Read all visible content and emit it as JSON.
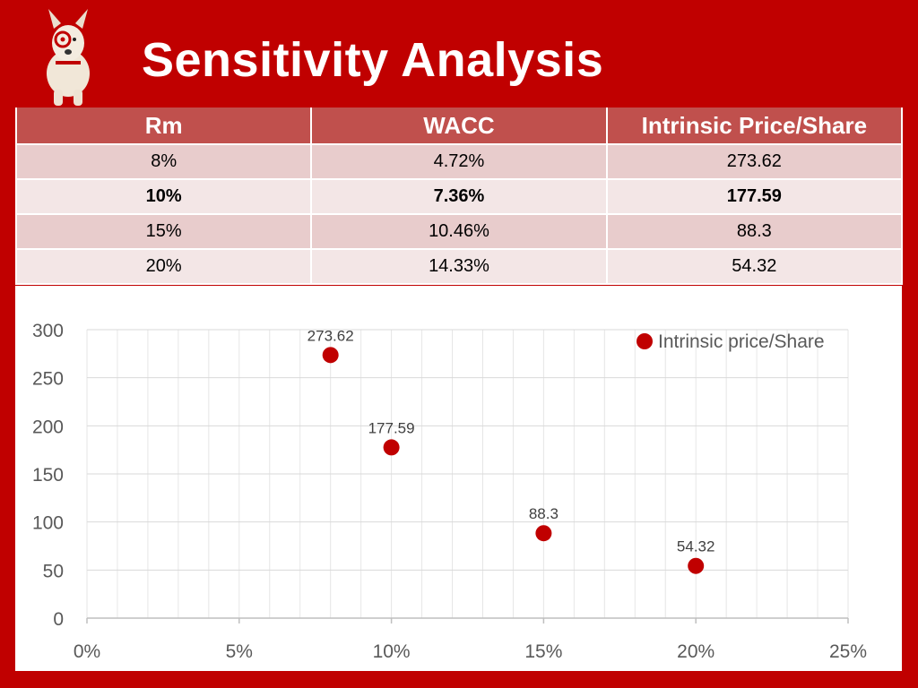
{
  "header": {
    "title": "Sensitivity Analysis"
  },
  "mascot": {
    "icon": "bull-terrier-mascot-icon"
  },
  "table": {
    "columns": [
      "Rm",
      "WACC",
      "Intrinsic Price/Share"
    ],
    "rows": [
      [
        "8%",
        "4.72%",
        "273.62"
      ],
      [
        "10%",
        "7.36%",
        "177.59"
      ],
      [
        "15%",
        "10.46%",
        "88.3"
      ],
      [
        "20%",
        "14.33%",
        "54.32"
      ]
    ],
    "bold_row_index": 1
  },
  "chart_data": {
    "type": "scatter",
    "series": [
      {
        "name": "Intrinsic price/Share",
        "x": [
          0.08,
          0.1,
          0.15,
          0.2
        ],
        "y": [
          273.62,
          177.59,
          88.3,
          54.32
        ],
        "labels": [
          "273.62",
          "177.59",
          "88.3",
          "54.32"
        ]
      }
    ],
    "xlim": [
      0,
      0.25
    ],
    "ylim": [
      0,
      300
    ],
    "x_ticks": [
      0,
      0.05,
      0.1,
      0.15,
      0.2,
      0.25
    ],
    "x_tick_labels": [
      "0%",
      "5%",
      "10%",
      "15%",
      "20%",
      "25%"
    ],
    "y_ticks": [
      0,
      50,
      100,
      150,
      200,
      250,
      300
    ],
    "y_tick_labels": [
      "0",
      "50",
      "100",
      "150",
      "200",
      "250",
      "300"
    ],
    "grid": true,
    "legend_position": "top-right",
    "marker_color": "#c00000"
  }
}
